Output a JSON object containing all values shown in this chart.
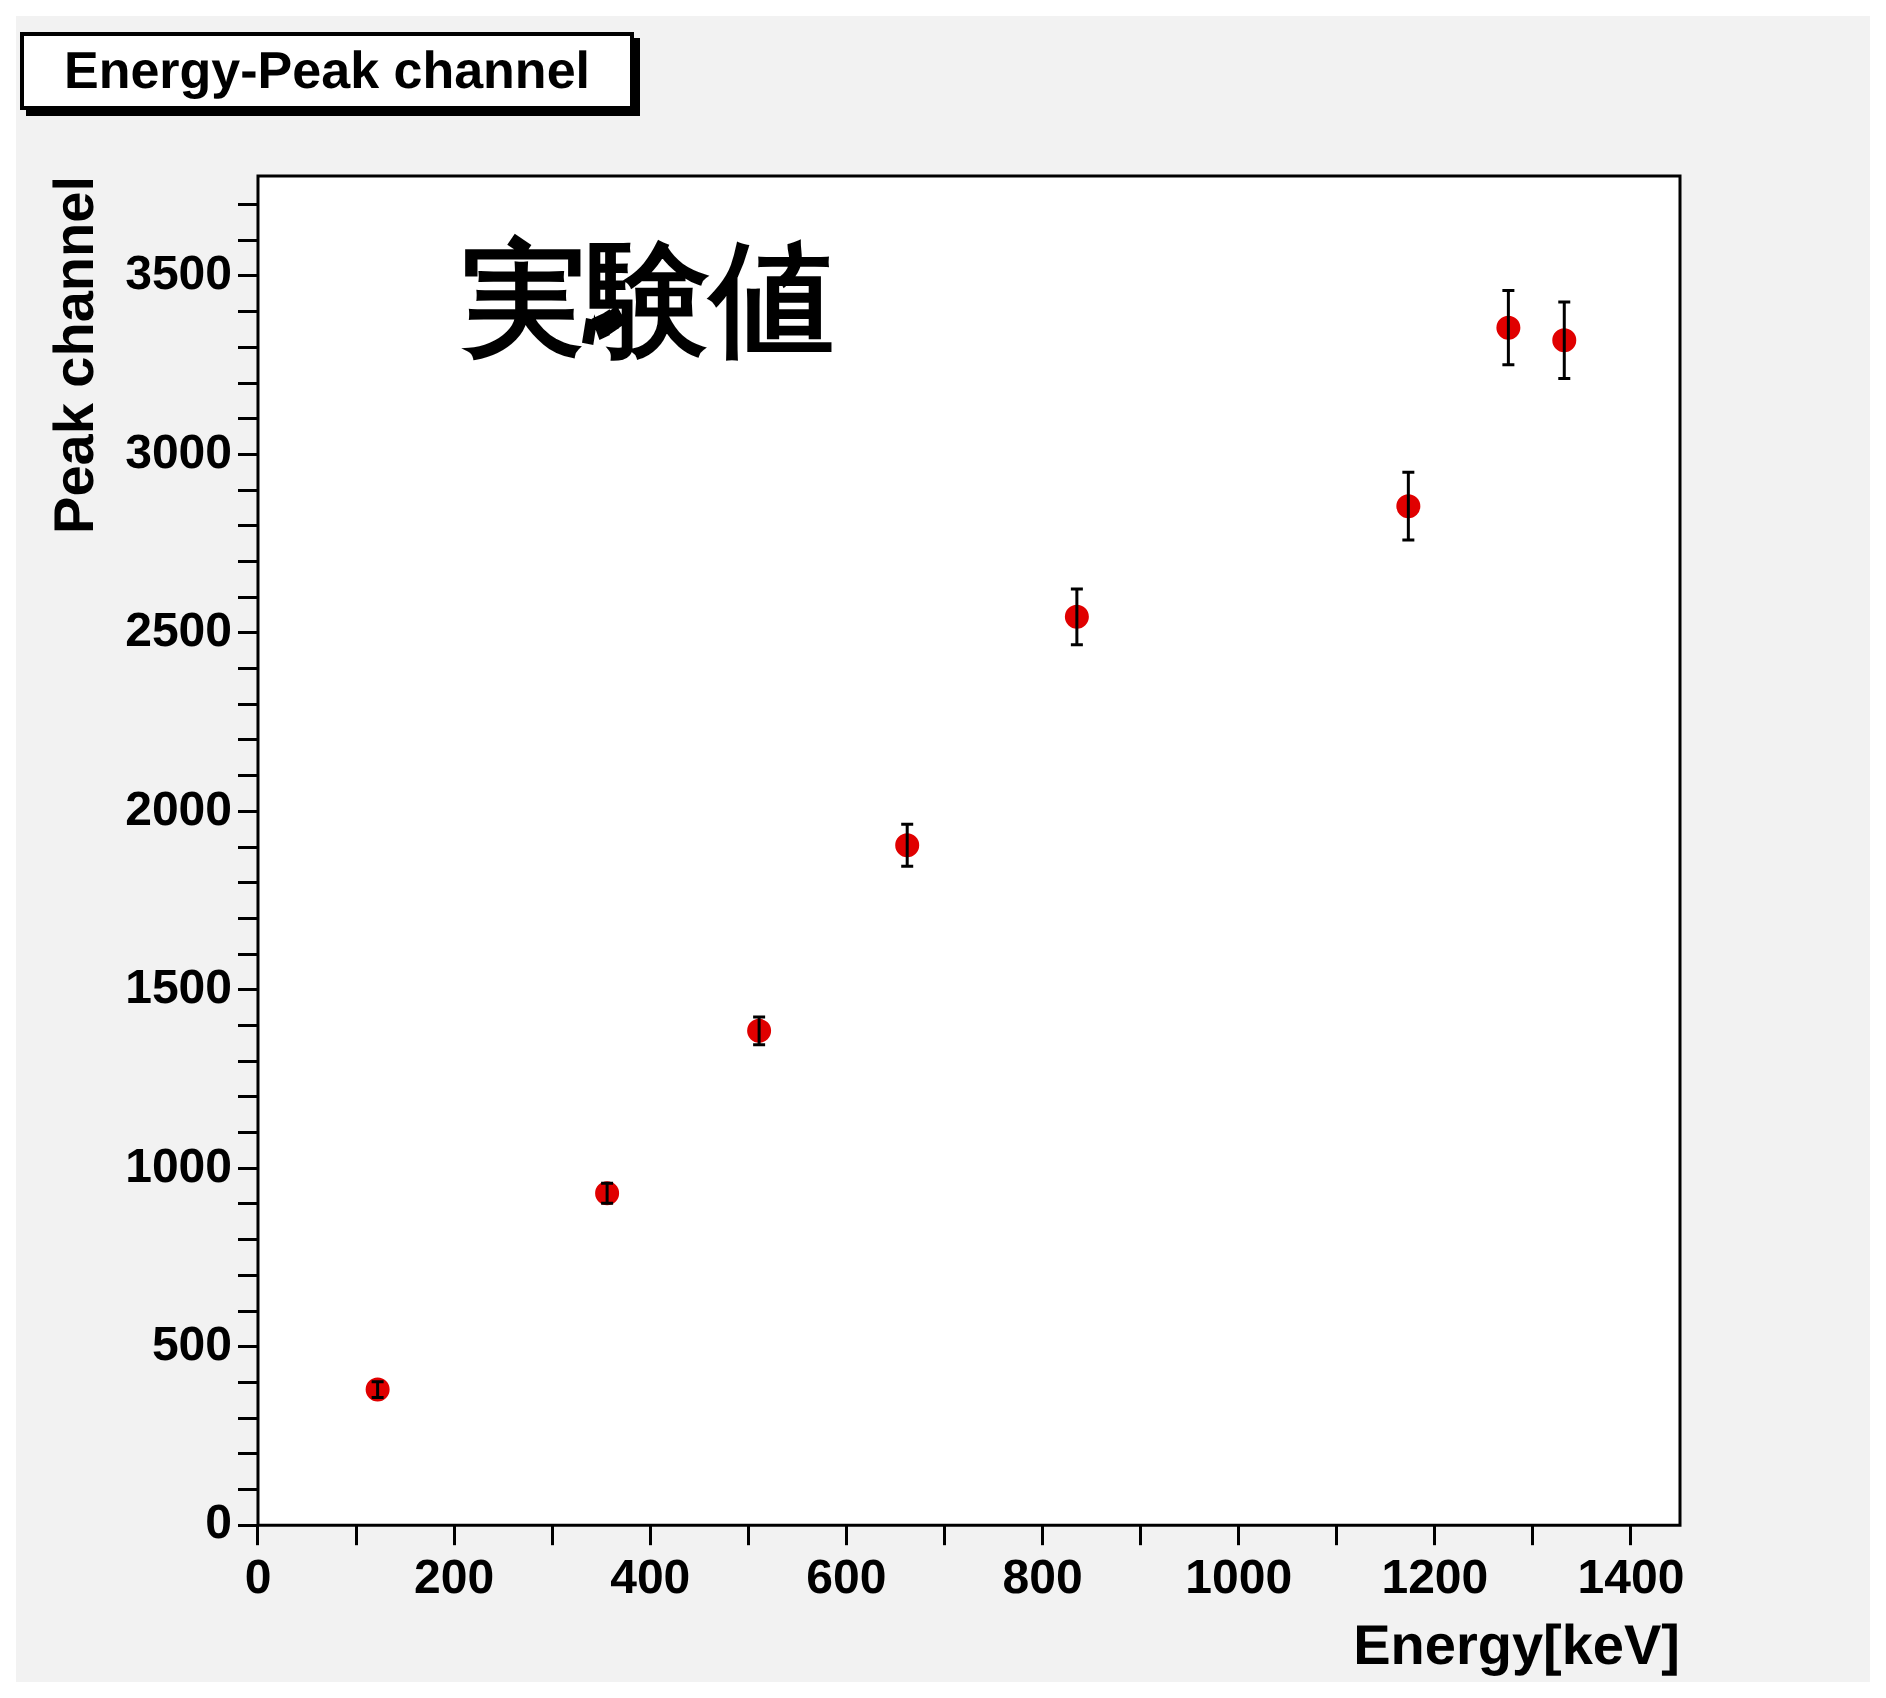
{
  "chart_data": {
    "type": "scatter",
    "title": "Energy-Peak channel",
    "xlabel": "Energy[keV]",
    "ylabel": "Peak channel",
    "annotations": [
      "実験値"
    ],
    "x": [
      122,
      356,
      511,
      662,
      835,
      1173,
      1275,
      1332
    ],
    "series": [
      {
        "color": "#e00000",
        "values": [
          380,
          930,
          1385,
          1905,
          2545,
          2855,
          3355,
          3320
        ],
        "errors": [
          22,
          28,
          39,
          59,
          78,
          95,
          104,
          107
        ]
      }
    ],
    "marker": "circle",
    "grid": false,
    "legend": false,
    "xlim": [
      0,
      1450
    ],
    "ylim": [
      0,
      3780
    ],
    "xticks": [
      0,
      {
        "value": 100,
        "label": null
      },
      200,
      {
        "value": 300,
        "label": null
      },
      400,
      {
        "value": 500,
        "label": null
      },
      600,
      {
        "value": 700,
        "label": null
      },
      800,
      {
        "value": 900,
        "label": null
      },
      1000,
      {
        "value": 1100,
        "label": null
      },
      1200,
      {
        "value": 1300,
        "label": null
      },
      1400
    ],
    "yticks": [
      0,
      {
        "value": 100,
        "label": null
      },
      {
        "value": 200,
        "label": null
      },
      {
        "value": 300,
        "label": null
      },
      {
        "value": 400,
        "label": null
      },
      500,
      {
        "value": 600,
        "label": null
      },
      {
        "value": 700,
        "label": null
      },
      {
        "value": 800,
        "label": null
      },
      {
        "value": 900,
        "label": null
      },
      1000,
      {
        "value": 1100,
        "label": null
      },
      {
        "value": 1200,
        "label": null
      },
      {
        "value": 1300,
        "label": null
      },
      {
        "value": 1400,
        "label": null
      },
      1500,
      {
        "value": 1600,
        "label": null
      },
      {
        "value": 1700,
        "label": null
      },
      {
        "value": 1800,
        "label": null
      },
      {
        "value": 1900,
        "label": null
      },
      2000,
      {
        "value": 2100,
        "label": null
      },
      {
        "value": 2200,
        "label": null
      },
      {
        "value": 2300,
        "label": null
      },
      {
        "value": 2400,
        "label": null
      },
      2500,
      {
        "value": 2600,
        "label": null
      },
      {
        "value": 2700,
        "label": null
      },
      {
        "value": 2800,
        "label": null
      },
      {
        "value": 2900,
        "label": null
      },
      3000,
      {
        "value": 3100,
        "label": null
      },
      {
        "value": 3200,
        "label": null
      },
      {
        "value": 3300,
        "label": null
      },
      {
        "value": 3400,
        "label": null
      },
      3500,
      {
        "value": 3600,
        "label": null
      },
      {
        "value": 3700,
        "label": null
      }
    ]
  }
}
